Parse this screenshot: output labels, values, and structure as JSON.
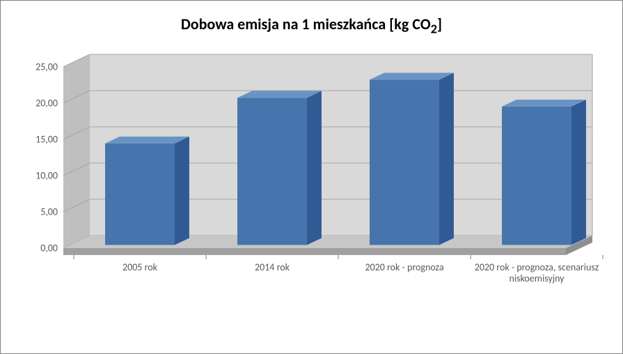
{
  "chart": {
    "type": "bar-3d",
    "title_html": "Dobowa emisja na 1 mieszkańca [kg CO<sub>2</sub>]",
    "title_fontsize": 22,
    "title_color": "#000000",
    "categories": [
      "2005 rok",
      "2014 rok",
      "2020 rok - prognoza",
      "2020 rok - prognoza, scenariusz niskoemisyjny"
    ],
    "values": [
      14.0,
      20.3,
      22.8,
      19.1
    ],
    "ylim": [
      0,
      25
    ],
    "ytick_step": 5,
    "ytick_labels": [
      "0,00",
      "5,00",
      "10,00",
      "15,00",
      "20,00",
      "25,00"
    ],
    "bar_colors": [
      "#4575ac",
      "#4575ac",
      "#4575ac",
      "#4575ac"
    ],
    "bar_side_color": "#2f5a93",
    "bar_top_color": "#6993c4",
    "floor_top_color": "#c7c7c7",
    "floor_side_color": "#a0a0a0",
    "back_wall_color": "#d9d9d9",
    "side_wall_color": "#bfbfbf",
    "gridline_color": "#a6a6a6",
    "axis_tick_fontsize": 14,
    "cat_label_fontsize": 14,
    "bar_screen_width": 100,
    "bar_gap": 90,
    "first_bar_x": 60,
    "depth_x": 38,
    "depth_y": 18,
    "outer_border": "#808080"
  }
}
